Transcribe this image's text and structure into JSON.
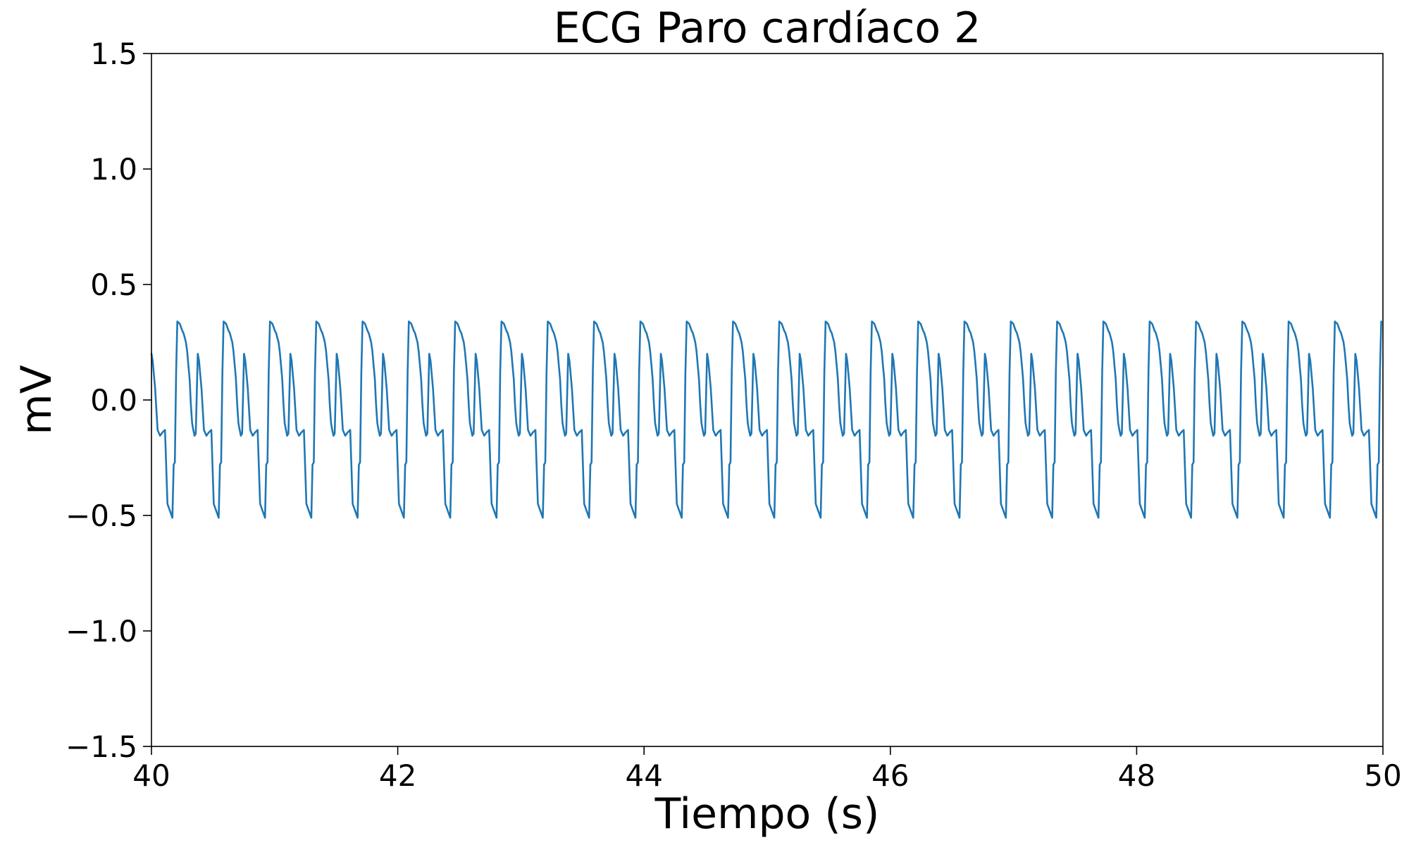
{
  "chart_data": {
    "type": "line",
    "title": "ECG Paro cardíaco 2",
    "xlabel": "Tiempo (s)",
    "ylabel": "mV",
    "xlim": [
      40,
      50
    ],
    "ylim": [
      -1.5,
      1.5
    ],
    "xticks": [
      40,
      42,
      44,
      46,
      48,
      50
    ],
    "xtick_labels": [
      "40",
      "42",
      "44",
      "46",
      "48",
      "50"
    ],
    "yticks": [
      -1.5,
      -1.0,
      -0.5,
      0.0,
      0.5,
      1.0,
      1.5
    ],
    "ytick_labels": [
      "−1.5",
      "−1.0",
      "−0.5",
      "0.0",
      "0.5",
      "1.0",
      "1.5"
    ],
    "grid": false,
    "legend": "none",
    "series": [
      {
        "color": "#1f77b4",
        "period_s": 0.376,
        "cycle_start_s": 40.0,
        "x": [
          40.0,
          40.01,
          40.03,
          40.05,
          40.07,
          40.09,
          40.11,
          40.13,
          40.15,
          40.17,
          40.18,
          40.19,
          40.2,
          40.21,
          40.23,
          40.25,
          40.26,
          40.27,
          40.28,
          40.29,
          40.3,
          40.31,
          40.32,
          40.33,
          40.34,
          40.35,
          40.36,
          40.376
        ],
        "y": [
          0.2,
          0.17,
          0.05,
          -0.13,
          -0.155,
          -0.14,
          -0.13,
          -0.45,
          -0.48,
          -0.51,
          -0.28,
          -0.27,
          0.12,
          0.34,
          0.33,
          0.3,
          0.29,
          0.27,
          0.25,
          0.21,
          0.15,
          0.09,
          -0.02,
          -0.1,
          -0.13,
          -0.155,
          -0.145,
          0.2
        ]
      }
    ]
  }
}
